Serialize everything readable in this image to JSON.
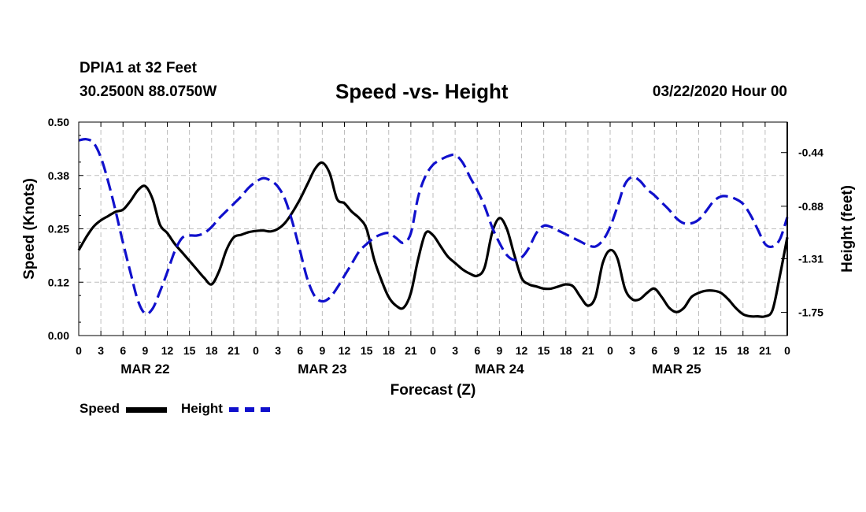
{
  "header": {
    "station": "DPIA1 at 32 Feet",
    "coords": "30.2500N 88.0750W",
    "title": "Speed -vs- Height",
    "stamp": "03/22/2020 Hour 00"
  },
  "chart_data": {
    "type": "line",
    "title": "Speed -vs- Height",
    "xlabel": "Forecast (Z)",
    "ylabel": "Speed (Knots)",
    "y2label": "Height (feet)",
    "x": [
      0,
      3,
      6,
      9,
      12,
      15,
      18,
      21,
      24,
      27,
      30,
      33,
      36,
      39,
      42,
      45,
      48,
      51,
      54,
      57,
      60,
      63,
      66,
      69,
      72,
      75,
      78,
      81,
      84,
      87,
      90,
      93,
      96
    ],
    "xtick_labels": [
      "0",
      "3",
      "6",
      "9",
      "12",
      "15",
      "18",
      "21",
      "0",
      "3",
      "6",
      "9",
      "12",
      "15",
      "18",
      "21",
      "0",
      "3",
      "6",
      "9",
      "12",
      "15",
      "18",
      "21",
      "0",
      "3",
      "6",
      "9",
      "12",
      "15",
      "18",
      "21",
      "0"
    ],
    "date_labels": [
      {
        "label": "MAR 22",
        "hour": 9
      },
      {
        "label": "MAR 23",
        "hour": 33
      },
      {
        "label": "MAR 24",
        "hour": 57
      },
      {
        "label": "MAR 25",
        "hour": 81
      }
    ],
    "ylim": [
      0,
      0.5
    ],
    "yticks": [
      "0.00",
      "0.12",
      "0.25",
      "0.38",
      "0.50"
    ],
    "y2lim": [
      -1.94,
      -0.19
    ],
    "y2ticks": [
      "-0.44",
      "-0.88",
      "-1.31",
      "-1.75"
    ],
    "grid": true,
    "legend_position": "bottom-left",
    "series": [
      {
        "name": "Speed",
        "axis": "left",
        "color": "#000000",
        "style": "solid",
        "points": [
          [
            0,
            0.2
          ],
          [
            1,
            0.23
          ],
          [
            2,
            0.255
          ],
          [
            3,
            0.27
          ],
          [
            4,
            0.28
          ],
          [
            5,
            0.29
          ],
          [
            6,
            0.295
          ],
          [
            7,
            0.315
          ],
          [
            8,
            0.34
          ],
          [
            9,
            0.35
          ],
          [
            10,
            0.32
          ],
          [
            11,
            0.26
          ],
          [
            12,
            0.24
          ],
          [
            13,
            0.215
          ],
          [
            14,
            0.195
          ],
          [
            15,
            0.175
          ],
          [
            16,
            0.155
          ],
          [
            17,
            0.135
          ],
          [
            18,
            0.12
          ],
          [
            19,
            0.15
          ],
          [
            20,
            0.2
          ],
          [
            21,
            0.23
          ],
          [
            22,
            0.236
          ],
          [
            23,
            0.242
          ],
          [
            24,
            0.245
          ],
          [
            25,
            0.246
          ],
          [
            26,
            0.244
          ],
          [
            27,
            0.25
          ],
          [
            28,
            0.265
          ],
          [
            29,
            0.29
          ],
          [
            30,
            0.32
          ],
          [
            31,
            0.355
          ],
          [
            32,
            0.39
          ],
          [
            33,
            0.405
          ],
          [
            34,
            0.38
          ],
          [
            35,
            0.32
          ],
          [
            36,
            0.31
          ],
          [
            37,
            0.29
          ],
          [
            38,
            0.275
          ],
          [
            39,
            0.25
          ],
          [
            40,
            0.18
          ],
          [
            41,
            0.13
          ],
          [
            42,
            0.09
          ],
          [
            43,
            0.07
          ],
          [
            44,
            0.065
          ],
          [
            45,
            0.1
          ],
          [
            46,
            0.18
          ],
          [
            47,
            0.24
          ],
          [
            48,
            0.235
          ],
          [
            49,
            0.21
          ],
          [
            50,
            0.185
          ],
          [
            51,
            0.17
          ],
          [
            52,
            0.155
          ],
          [
            53,
            0.145
          ],
          [
            54,
            0.14
          ],
          [
            55,
            0.16
          ],
          [
            56,
            0.24
          ],
          [
            57,
            0.275
          ],
          [
            58,
            0.25
          ],
          [
            59,
            0.19
          ],
          [
            60,
            0.135
          ],
          [
            61,
            0.12
          ],
          [
            62,
            0.115
          ],
          [
            63,
            0.11
          ],
          [
            64,
            0.11
          ],
          [
            65,
            0.115
          ],
          [
            66,
            0.12
          ],
          [
            67,
            0.115
          ],
          [
            68,
            0.09
          ],
          [
            69,
            0.07
          ],
          [
            70,
            0.09
          ],
          [
            71,
            0.17
          ],
          [
            72,
            0.2
          ],
          [
            73,
            0.18
          ],
          [
            74,
            0.11
          ],
          [
            75,
            0.085
          ],
          [
            76,
            0.085
          ],
          [
            77,
            0.1
          ],
          [
            78,
            0.11
          ],
          [
            79,
            0.09
          ],
          [
            80,
            0.065
          ],
          [
            81,
            0.055
          ],
          [
            82,
            0.065
          ],
          [
            83,
            0.09
          ],
          [
            84,
            0.1
          ],
          [
            85,
            0.105
          ],
          [
            86,
            0.105
          ],
          [
            87,
            0.1
          ],
          [
            88,
            0.085
          ],
          [
            89,
            0.065
          ],
          [
            90,
            0.05
          ],
          [
            91,
            0.045
          ],
          [
            92,
            0.045
          ],
          [
            93,
            0.045
          ],
          [
            94,
            0.06
          ],
          [
            95,
            0.14
          ],
          [
            96,
            0.23
          ]
        ]
      },
      {
        "name": "Height",
        "axis": "right",
        "color": "#1010cc",
        "style": "dashed",
        "points": [
          [
            0,
            -0.34
          ],
          [
            1,
            -0.33
          ],
          [
            2,
            -0.36
          ],
          [
            3,
            -0.48
          ],
          [
            4,
            -0.68
          ],
          [
            5,
            -0.92
          ],
          [
            6,
            -1.18
          ],
          [
            7,
            -1.42
          ],
          [
            8,
            -1.65
          ],
          [
            9,
            -1.76
          ],
          [
            10,
            -1.72
          ],
          [
            11,
            -1.58
          ],
          [
            12,
            -1.42
          ],
          [
            13,
            -1.25
          ],
          [
            14,
            -1.14
          ],
          [
            15,
            -1.12
          ],
          [
            16,
            -1.12
          ],
          [
            17,
            -1.1
          ],
          [
            18,
            -1.05
          ],
          [
            19,
            -0.98
          ],
          [
            20,
            -0.92
          ],
          [
            21,
            -0.86
          ],
          [
            22,
            -0.8
          ],
          [
            23,
            -0.73
          ],
          [
            24,
            -0.68
          ],
          [
            25,
            -0.65
          ],
          [
            26,
            -0.67
          ],
          [
            27,
            -0.72
          ],
          [
            28,
            -0.83
          ],
          [
            29,
            -1.02
          ],
          [
            30,
            -1.25
          ],
          [
            31,
            -1.48
          ],
          [
            32,
            -1.62
          ],
          [
            33,
            -1.66
          ],
          [
            34,
            -1.63
          ],
          [
            35,
            -1.55
          ],
          [
            36,
            -1.45
          ],
          [
            37,
            -1.35
          ],
          [
            38,
            -1.25
          ],
          [
            39,
            -1.19
          ],
          [
            40,
            -1.14
          ],
          [
            41,
            -1.11
          ],
          [
            42,
            -1.1
          ],
          [
            43,
            -1.14
          ],
          [
            44,
            -1.18
          ],
          [
            45,
            -1.1
          ],
          [
            46,
            -0.8
          ],
          [
            47,
            -0.63
          ],
          [
            48,
            -0.54
          ],
          [
            49,
            -0.5
          ],
          [
            50,
            -0.47
          ],
          [
            51,
            -0.46
          ],
          [
            52,
            -0.52
          ],
          [
            53,
            -0.64
          ],
          [
            54,
            -0.75
          ],
          [
            55,
            -0.88
          ],
          [
            56,
            -1.05
          ],
          [
            57,
            -1.18
          ],
          [
            58,
            -1.28
          ],
          [
            59,
            -1.32
          ],
          [
            60,
            -1.3
          ],
          [
            61,
            -1.22
          ],
          [
            62,
            -1.1
          ],
          [
            63,
            -1.04
          ],
          [
            64,
            -1.05
          ],
          [
            65,
            -1.08
          ],
          [
            66,
            -1.11
          ],
          [
            67,
            -1.14
          ],
          [
            68,
            -1.17
          ],
          [
            69,
            -1.2
          ],
          [
            70,
            -1.21
          ],
          [
            71,
            -1.16
          ],
          [
            72,
            -1.05
          ],
          [
            73,
            -0.88
          ],
          [
            74,
            -0.7
          ],
          [
            75,
            -0.64
          ],
          [
            76,
            -0.67
          ],
          [
            77,
            -0.74
          ],
          [
            78,
            -0.79
          ],
          [
            79,
            -0.85
          ],
          [
            80,
            -0.91
          ],
          [
            81,
            -0.98
          ],
          [
            82,
            -1.02
          ],
          [
            83,
            -1.02
          ],
          [
            84,
            -0.99
          ],
          [
            85,
            -0.92
          ],
          [
            86,
            -0.84
          ],
          [
            87,
            -0.8
          ],
          [
            88,
            -0.8
          ],
          [
            89,
            -0.82
          ],
          [
            90,
            -0.86
          ],
          [
            91,
            -0.95
          ],
          [
            92,
            -1.07
          ],
          [
            93,
            -1.19
          ],
          [
            94,
            -1.21
          ],
          [
            95,
            -1.15
          ],
          [
            96,
            -0.97
          ]
        ]
      }
    ]
  },
  "legend": {
    "speed_label": "Speed",
    "height_label": "Height"
  }
}
